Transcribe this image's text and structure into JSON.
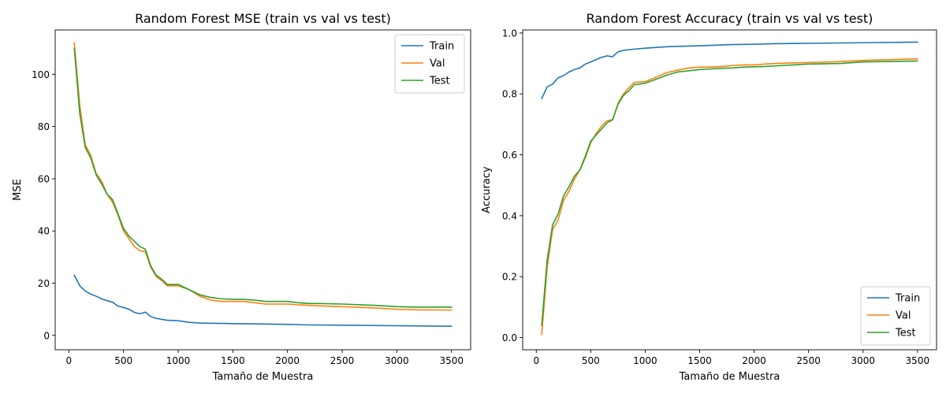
{
  "chart_data": [
    {
      "type": "line",
      "title": "Random Forest MSE (train vs val vs test)",
      "xlabel": "Tamaño de Muestra",
      "ylabel": "MSE",
      "xlim": [
        -125,
        3675
      ],
      "ylim": [
        -5.5,
        117
      ],
      "xticks": [
        0,
        500,
        1000,
        1500,
        2000,
        2500,
        3000,
        3500
      ],
      "yticks": [
        0,
        20,
        40,
        60,
        80,
        100
      ],
      "legend_position": "upper right",
      "grid": false,
      "series": [
        {
          "name": "Train",
          "color": "#1f77b4",
          "x": [
            50,
            100,
            150,
            200,
            250,
            300,
            350,
            400,
            450,
            500,
            550,
            600,
            650,
            700,
            750,
            800,
            900,
            1000,
            1100,
            1200,
            1400,
            1500,
            1700,
            2000,
            2200,
            2500,
            3000,
            3500
          ],
          "y": [
            23,
            19,
            17,
            15.8,
            15,
            14,
            13.3,
            12.7,
            11.2,
            10.7,
            10,
            8.8,
            8.3,
            8.9,
            7.2,
            6.5,
            5.8,
            5.6,
            5,
            4.7,
            4.6,
            4.5,
            4.4,
            4.2,
            4,
            3.9,
            3.7,
            3.5
          ]
        },
        {
          "name": "Val",
          "color": "#ff7f0e",
          "x": [
            50,
            100,
            150,
            200,
            250,
            300,
            350,
            400,
            450,
            500,
            550,
            600,
            650,
            700,
            750,
            800,
            850,
            900,
            1000,
            1100,
            1200,
            1300,
            1400,
            1500,
            1600,
            1700,
            1800,
            1900,
            2000,
            2100,
            2200,
            2300,
            2500,
            2800,
            3000,
            3200,
            3500
          ],
          "y": [
            112,
            88,
            73,
            69,
            62,
            59,
            54,
            51,
            46,
            40,
            37,
            34,
            32.5,
            32,
            26,
            22.5,
            21,
            19,
            19,
            17.5,
            15,
            13.5,
            13,
            13,
            13,
            12.5,
            12,
            12,
            12,
            11.7,
            11.5,
            11.3,
            11,
            10.5,
            10,
            9.8,
            9.7
          ]
        },
        {
          "name": "Test",
          "color": "#2ca02c",
          "x": [
            50,
            100,
            150,
            200,
            250,
            300,
            350,
            400,
            450,
            500,
            550,
            600,
            650,
            700,
            750,
            800,
            850,
            900,
            1000,
            1100,
            1200,
            1300,
            1400,
            1500,
            1600,
            1700,
            1800,
            1900,
            2000,
            2100,
            2200,
            2300,
            2500,
            2800,
            3000,
            3200,
            3500
          ],
          "y": [
            110,
            85,
            72,
            68,
            61.5,
            58,
            54,
            52,
            46.5,
            41,
            38,
            36,
            34,
            33,
            26.5,
            23,
            21.5,
            19.5,
            19.5,
            17.5,
            15.5,
            14.5,
            14,
            13.8,
            13.8,
            13.5,
            13,
            13,
            13,
            12.5,
            12.2,
            12.2,
            12,
            11.5,
            11,
            10.8,
            10.8
          ]
        }
      ]
    },
    {
      "type": "line",
      "title": "Random Forest Accuracy (train vs val vs test)",
      "xlabel": "Tamaño de Muestra",
      "ylabel": "Accuracy",
      "xlim": [
        -125,
        3675
      ],
      "ylim": [
        -0.04,
        1.01
      ],
      "xticks": [
        0,
        500,
        1000,
        1500,
        2000,
        2500,
        3000,
        3500
      ],
      "yticks": [
        0.0,
        0.2,
        0.4,
        0.6,
        0.8,
        1.0
      ],
      "legend_position": "lower right",
      "grid": false,
      "series": [
        {
          "name": "Train",
          "color": "#1f77b4",
          "x": [
            50,
            100,
            150,
            200,
            250,
            300,
            350,
            400,
            450,
            500,
            550,
            600,
            650,
            700,
            750,
            800,
            900,
            1000,
            1200,
            1500,
            1800,
            2000,
            2200,
            2500,
            3000,
            3500
          ],
          "y": [
            0.785,
            0.823,
            0.832,
            0.853,
            0.86,
            0.872,
            0.88,
            0.885,
            0.898,
            0.905,
            0.913,
            0.92,
            0.925,
            0.922,
            0.938,
            0.943,
            0.947,
            0.95,
            0.955,
            0.958,
            0.962,
            0.963,
            0.965,
            0.966,
            0.968,
            0.97
          ]
        },
        {
          "name": "Val",
          "color": "#ff7f0e",
          "x": [
            50,
            100,
            150,
            200,
            250,
            300,
            350,
            400,
            450,
            500,
            550,
            600,
            650,
            700,
            750,
            800,
            850,
            900,
            1000,
            1100,
            1200,
            1300,
            1400,
            1500,
            1600,
            1700,
            1800,
            1900,
            2000,
            2100,
            2200,
            2500,
            2800,
            3000,
            3500
          ],
          "y": [
            0.01,
            0.23,
            0.355,
            0.385,
            0.45,
            0.48,
            0.52,
            0.55,
            0.59,
            0.64,
            0.67,
            0.695,
            0.712,
            0.715,
            0.768,
            0.8,
            0.82,
            0.838,
            0.84,
            0.855,
            0.87,
            0.878,
            0.885,
            0.888,
            0.888,
            0.89,
            0.893,
            0.895,
            0.895,
            0.898,
            0.9,
            0.903,
            0.906,
            0.91,
            0.915
          ]
        },
        {
          "name": "Test",
          "color": "#2ca02c",
          "x": [
            50,
            100,
            150,
            200,
            250,
            300,
            350,
            400,
            450,
            500,
            550,
            600,
            650,
            700,
            750,
            800,
            850,
            900,
            1000,
            1100,
            1200,
            1300,
            1400,
            1500,
            1600,
            1700,
            1800,
            1900,
            2000,
            2100,
            2200,
            2500,
            2800,
            3000,
            3500
          ],
          "y": [
            0.04,
            0.255,
            0.37,
            0.405,
            0.465,
            0.495,
            0.53,
            0.55,
            0.595,
            0.645,
            0.665,
            0.685,
            0.705,
            0.715,
            0.765,
            0.795,
            0.81,
            0.83,
            0.835,
            0.848,
            0.862,
            0.872,
            0.876,
            0.88,
            0.882,
            0.884,
            0.885,
            0.888,
            0.889,
            0.89,
            0.892,
            0.898,
            0.9,
            0.905,
            0.908
          ]
        }
      ]
    }
  ]
}
